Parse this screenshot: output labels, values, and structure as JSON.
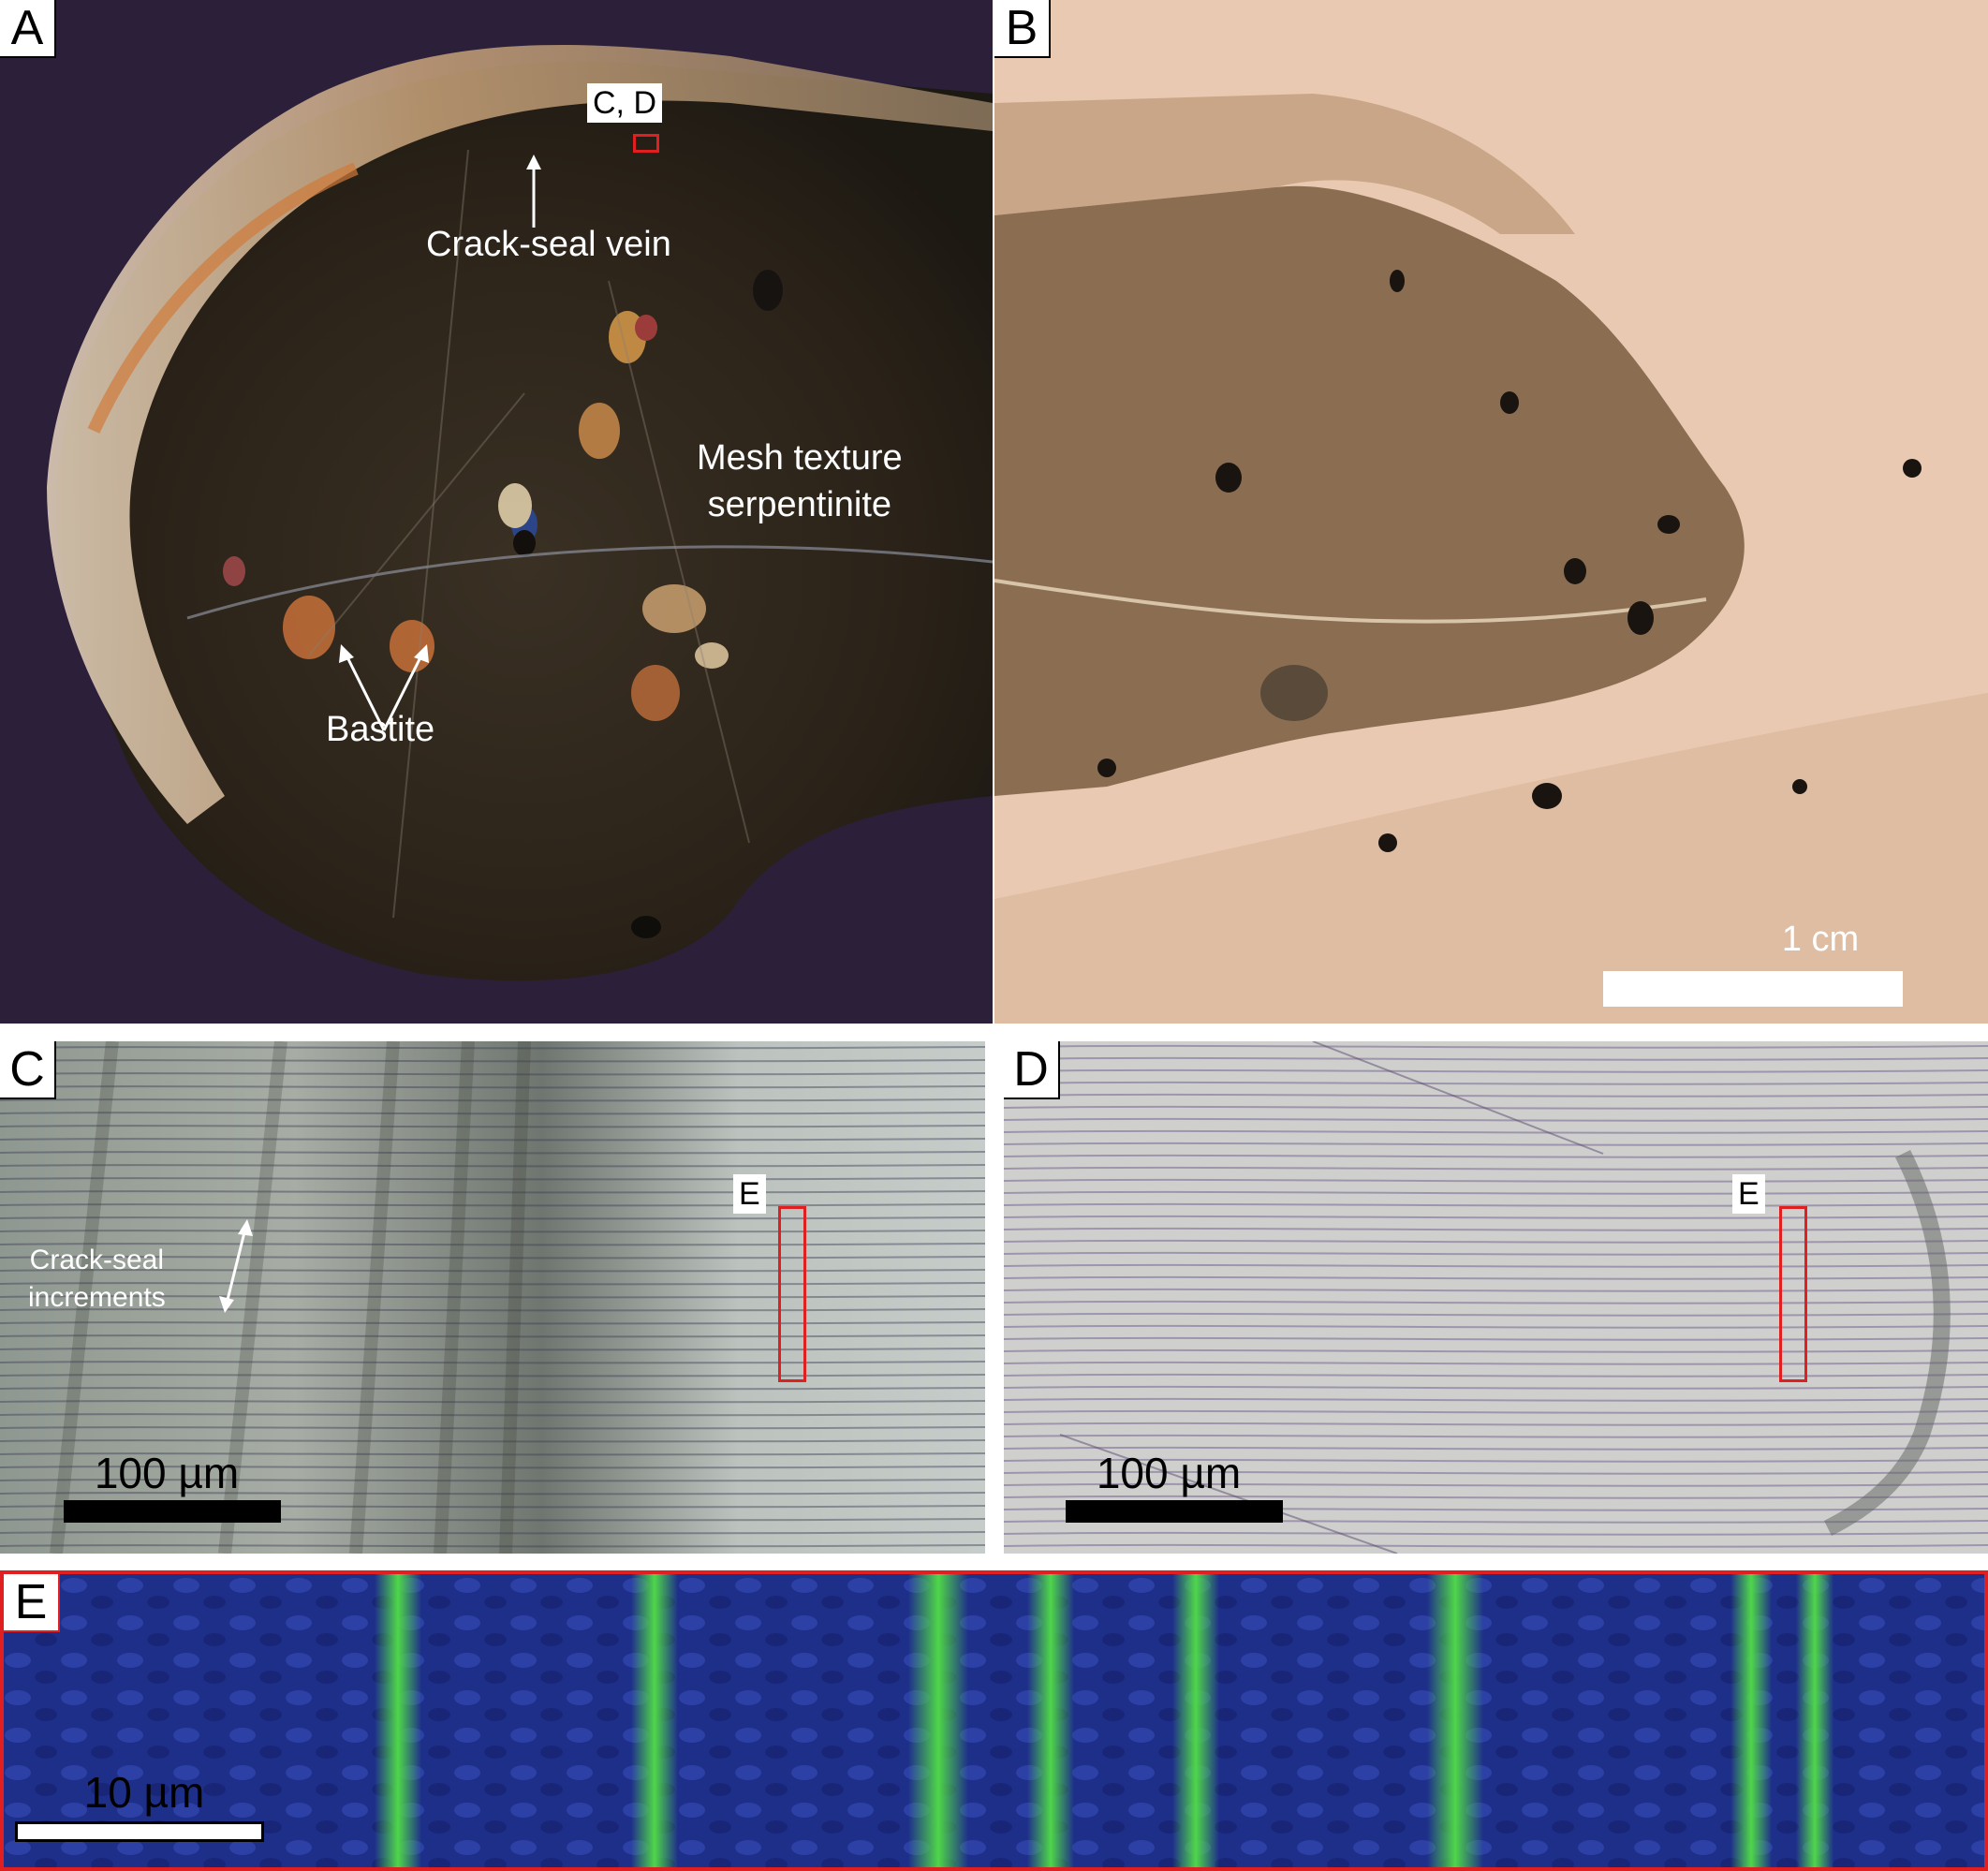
{
  "panels": {
    "a": {
      "letter": "A",
      "labels": {
        "callout": "C, D",
        "vein": "Crack-seal vein",
        "mesh": "Mesh texture\nserpentinite",
        "bastite": "Bastite"
      }
    },
    "b": {
      "letter": "B",
      "scale_label": "1 cm"
    },
    "c": {
      "letter": "C",
      "callout": "E",
      "increments_label": "Crack-seal\nincrements",
      "scale_label": "100 µm"
    },
    "d": {
      "letter": "D",
      "callout": "E",
      "scale_label": "100 µm"
    },
    "e": {
      "letter": "E",
      "scale_label": "10 µm"
    }
  },
  "colors": {
    "box_red": "#e02020",
    "panel_a_bg": "#2b1f3a",
    "panel_b_bg": "#e9c9b1",
    "panel_c_bg": "#b9bfb9",
    "panel_d_bg": "#c9c9c9",
    "panel_e_bg": "#1e2f8a",
    "band_green": "#4fd64a"
  }
}
